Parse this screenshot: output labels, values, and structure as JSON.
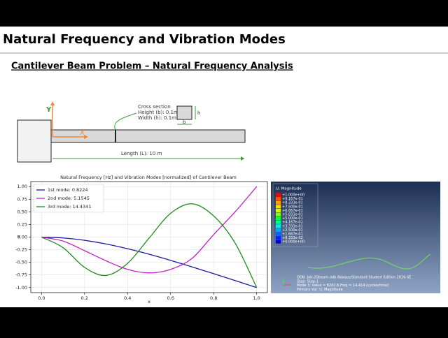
{
  "slide": {
    "title": "Natural Frequency and Vibration Modes",
    "subtitle": "Cantilever Beam Problem – Natural Frequency Analysis"
  },
  "diagram": {
    "y_label": "Y",
    "x_label": "X",
    "cross_section": [
      "Cross section",
      "Height (b): 0.1m",
      "Width (h): 0.1m"
    ],
    "h_label": "h",
    "b_label": "b",
    "length": "Length (L): 10 m"
  },
  "chart_data": {
    "type": "line",
    "title": "Natural Frequency [Hz] and Vibration Modes [normalized] of Cantilever Beam",
    "x_label": "x",
    "y_label": "Y",
    "x": [
      0,
      0.1,
      0.2,
      0.3,
      0.4,
      0.5,
      0.6,
      0.7,
      0.8,
      0.9,
      1.0
    ],
    "series": [
      {
        "name": "1st mode: 0.8224",
        "color": "#1a1a9c",
        "values": [
          0,
          -0.017,
          -0.064,
          -0.136,
          -0.23,
          -0.339,
          -0.461,
          -0.591,
          -0.725,
          -0.862,
          -1.0
        ]
      },
      {
        "name": "2nd mode: 5.1545",
        "color": "#c21fc2",
        "values": [
          0,
          -0.08,
          -0.27,
          -0.47,
          -0.64,
          -0.71,
          -0.64,
          -0.42,
          0.05,
          0.5,
          1.0
        ]
      },
      {
        "name": "3rd mode: 14.4341",
        "color": "#1f8a1f",
        "values": [
          0,
          -0.21,
          -0.6,
          -0.76,
          -0.52,
          -0.02,
          0.47,
          0.66,
          0.42,
          -0.12,
          -1.0
        ]
      }
    ],
    "xlim": [
      -0.05,
      1.05
    ],
    "ylim": [
      -1.1,
      1.1
    ],
    "xticks": [
      {
        "value": 0,
        "label": "0.0"
      },
      0.2,
      0.4,
      0.6,
      0.8,
      {
        "value": 1,
        "label": "1.0"
      }
    ],
    "yticks": [
      {
        "value": 1,
        "label": "1.00"
      },
      0.75,
      {
        "value": 0.5,
        "label": "0.50"
      },
      0.25,
      {
        "value": 0,
        "label": "0.00"
      },
      -0.25,
      {
        "value": -0.5,
        "label": "-0.50"
      },
      -0.75,
      {
        "value": -1,
        "label": "-1.00"
      }
    ],
    "grid": true,
    "legend_loc": "upper left"
  },
  "fea_image": {
    "legend_title": "U, Magnitude",
    "legend_values": [
      "+1.000e+00",
      "+9.167e-01",
      "+8.333e-01",
      "+7.500e-01",
      "+6.667e-01",
      "+5.833e-01",
      "+5.000e-01",
      "+4.167e-01",
      "+3.333e-01",
      "+2.500e-01",
      "+1.667e-01",
      "+8.333e-02",
      "+0.000e+00"
    ],
    "info": [
      "ODB: Job-2Dbeam.odb    Abaqus/Standard Student Edition 2016-SE",
      "Step: Step-1",
      "Mode     3: Value =   8202.6    Freq =   14.414   (cycles/time)",
      "Primary Var: U, Magnitude"
    ]
  }
}
